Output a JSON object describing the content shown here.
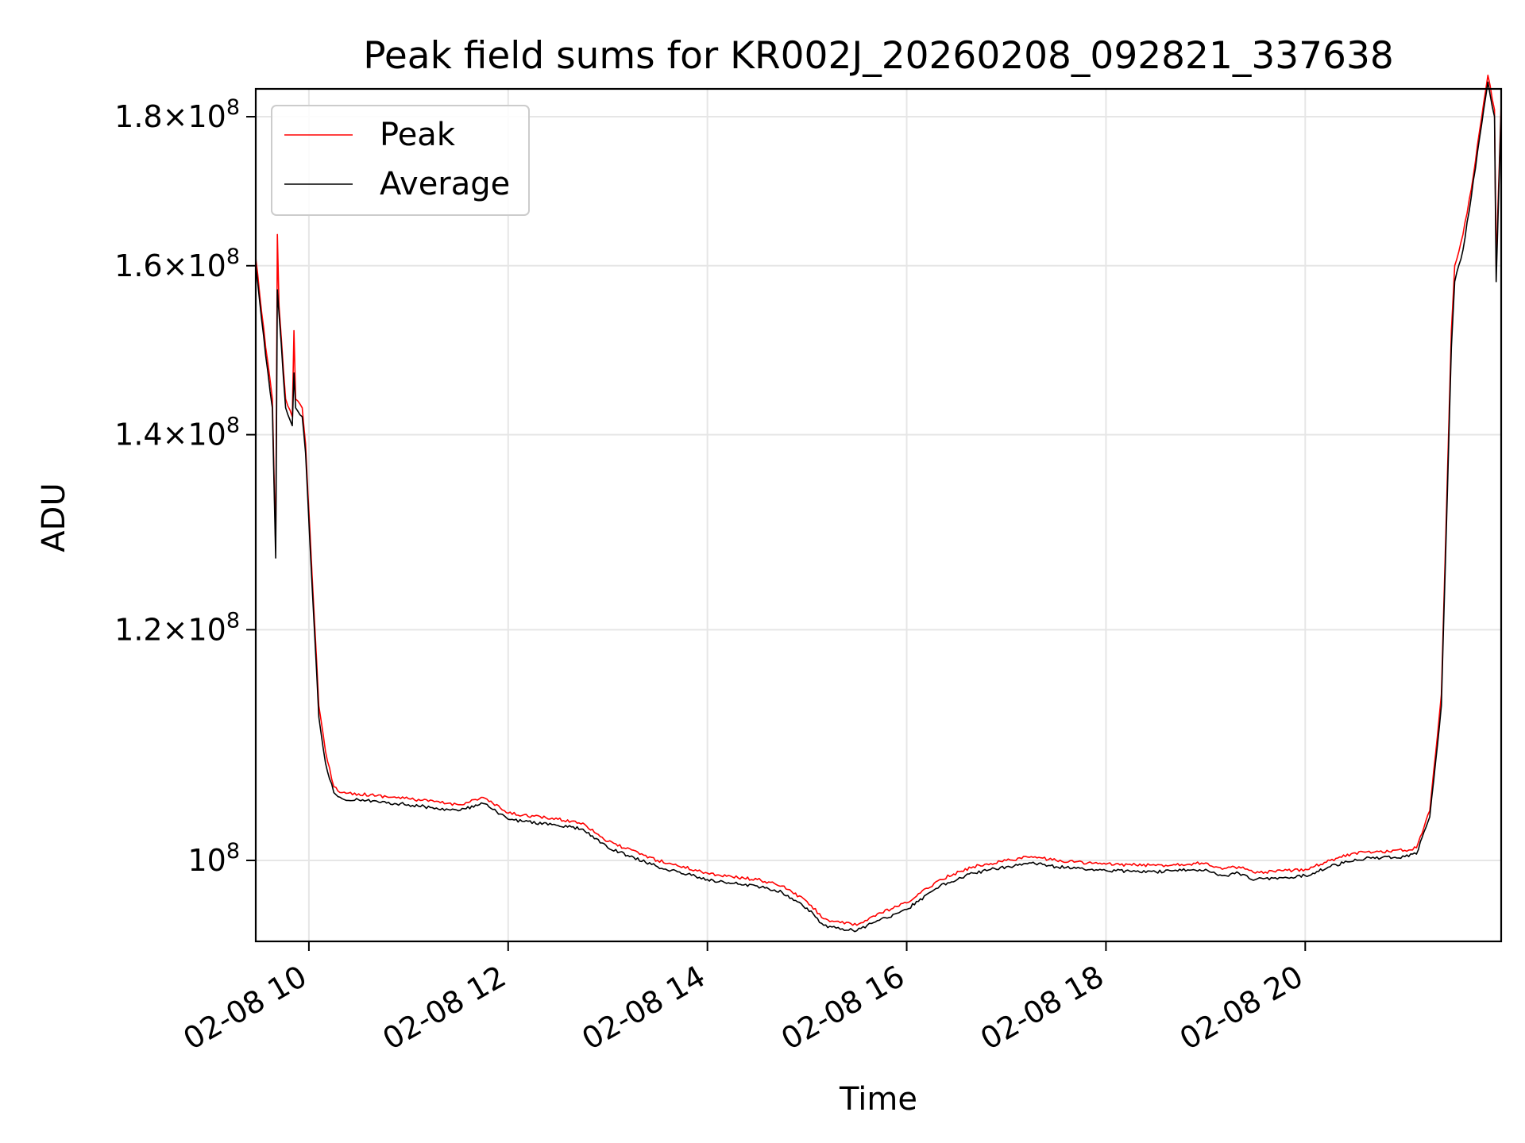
{
  "chart_data": {
    "type": "line",
    "title": "Peak field sums for KR002J_20260208_092821_337638",
    "xlabel": "Time",
    "ylabel": "ADU",
    "yscale": "log",
    "xlim": [
      "02-08 09:28",
      "02-08 21:58"
    ],
    "ylim": [
      93800000.0,
      184000000.0
    ],
    "grid": true,
    "legend_position": "top-left",
    "x_ticks": [
      "02-08 10",
      "02-08 12",
      "02-08 14",
      "02-08 16",
      "02-08 18",
      "02-08 20"
    ],
    "y_ticks": [
      {
        "value": 100000000.0,
        "mantissa": "",
        "exponent": "8",
        "label": "10"
      },
      {
        "value": 120000000.0,
        "mantissa": "1.2",
        "exponent": "8",
        "label": "10"
      },
      {
        "value": 140000000.0,
        "mantissa": "1.4",
        "exponent": "8",
        "label": "10"
      },
      {
        "value": 160000000.0,
        "mantissa": "1.6",
        "exponent": "8",
        "label": "10"
      },
      {
        "value": 180000000.0,
        "mantissa": "1.8",
        "exponent": "8",
        "label": "10"
      }
    ],
    "series": [
      {
        "name": "Peak",
        "color": "#ff0000",
        "x": [
          "02-08 09:28",
          "02-08 09:34",
          "02-08 09:38",
          "02-08 09:40",
          "02-08 09:41",
          "02-08 09:42",
          "02-08 09:46",
          "02-08 09:50",
          "02-08 09:51",
          "02-08 09:52",
          "02-08 09:56",
          "02-08 09:58",
          "02-08 10:02",
          "02-08 10:06",
          "02-08 10:10",
          "02-08 10:15",
          "02-08 10:20",
          "02-08 10:30",
          "02-08 11:00",
          "02-08 11:30",
          "02-08 11:45",
          "02-08 12:00",
          "02-08 12:30",
          "02-08 12:45",
          "02-08 13:00",
          "02-08 13:30",
          "02-08 14:00",
          "02-08 14:15",
          "02-08 14:30",
          "02-08 14:45",
          "02-08 15:00",
          "02-08 15:10",
          "02-08 15:20",
          "02-08 15:30",
          "02-08 15:40",
          "02-08 16:00",
          "02-08 16:20",
          "02-08 16:40",
          "02-08 17:00",
          "02-08 17:15",
          "02-08 17:30",
          "02-08 18:00",
          "02-08 18:30",
          "02-08 19:00",
          "02-08 19:10",
          "02-08 19:20",
          "02-08 19:30",
          "02-08 20:00",
          "02-08 20:15",
          "02-08 20:30",
          "02-08 21:00",
          "02-08 21:07",
          "02-08 21:15",
          "02-08 21:22",
          "02-08 21:28",
          "02-08 21:30",
          "02-08 21:35",
          "02-08 21:40",
          "02-08 21:45",
          "02-08 21:50",
          "02-08 21:54",
          "02-08 21:55",
          "02-08 21:58"
        ],
        "values": [
          161000000.0,
          150000000.0,
          144000000.0,
          128000000.0,
          164000000.0,
          155000000.0,
          144000000.0,
          142000000.0,
          152000000.0,
          144000000.0,
          143000000.0,
          139000000.0,
          125000000.0,
          113000000.0,
          109000000.0,
          106000000.0,
          105500000.0,
          105400000.0,
          105000000.0,
          104500000.0,
          105100000.0,
          103800000.0,
          103300000.0,
          103000000.0,
          101500000.0,
          100000000.0,
          99000000.0,
          98700000.0,
          98500000.0,
          98000000.0,
          96800000.0,
          95500000.0,
          95200000.0,
          95000000.0,
          95700000.0,
          96700000.0,
          98500000.0,
          99500000.0,
          100000000.0,
          100300000.0,
          100000000.0,
          99700000.0,
          99600000.0,
          99800000.0,
          99300000.0,
          99500000.0,
          99000000.0,
          99300000.0,
          100000000.0,
          100600000.0,
          100800000.0,
          101000000.0,
          104000000.0,
          114000000.0,
          152000000.0,
          160000000.0,
          164000000.0,
          170000000.0,
          178000000.0,
          186000000.0,
          181000000.0,
          160000000.0,
          182000000.0
        ]
      },
      {
        "name": "Average",
        "color": "#000000",
        "x": [
          "02-08 09:28",
          "02-08 09:34",
          "02-08 09:38",
          "02-08 09:40",
          "02-08 09:41",
          "02-08 09:42",
          "02-08 09:46",
          "02-08 09:50",
          "02-08 09:51",
          "02-08 09:52",
          "02-08 09:56",
          "02-08 09:58",
          "02-08 10:02",
          "02-08 10:06",
          "02-08 10:10",
          "02-08 10:15",
          "02-08 10:20",
          "02-08 10:30",
          "02-08 11:00",
          "02-08 11:30",
          "02-08 11:45",
          "02-08 12:00",
          "02-08 12:30",
          "02-08 12:45",
          "02-08 13:00",
          "02-08 13:30",
          "02-08 14:00",
          "02-08 14:15",
          "02-08 14:30",
          "02-08 14:45",
          "02-08 15:00",
          "02-08 15:10",
          "02-08 15:20",
          "02-08 15:30",
          "02-08 15:40",
          "02-08 16:00",
          "02-08 16:20",
          "02-08 16:40",
          "02-08 17:00",
          "02-08 17:15",
          "02-08 17:30",
          "02-08 18:00",
          "02-08 18:30",
          "02-08 19:00",
          "02-08 19:10",
          "02-08 19:20",
          "02-08 19:30",
          "02-08 20:00",
          "02-08 20:15",
          "02-08 20:30",
          "02-08 21:00",
          "02-08 21:07",
          "02-08 21:15",
          "02-08 21:22",
          "02-08 21:28",
          "02-08 21:30",
          "02-08 21:35",
          "02-08 21:40",
          "02-08 21:45",
          "02-08 21:50",
          "02-08 21:54",
          "02-08 21:55",
          "02-08 21:58"
        ],
        "values": [
          160000000.0,
          149000000.0,
          143000000.0,
          127000000.0,
          157000000.0,
          154000000.0,
          143000000.0,
          141000000.0,
          147000000.0,
          143000000.0,
          142000000.0,
          138000000.0,
          124000000.0,
          112000000.0,
          108000000.0,
          105500000.0,
          105000000.0,
          104900000.0,
          104500000.0,
          104000000.0,
          104600000.0,
          103300000.0,
          102800000.0,
          102500000.0,
          101000000.0,
          99500000.0,
          98500000.0,
          98200000.0,
          98000000.0,
          97500000.0,
          96300000.0,
          95000000.0,
          94700000.0,
          94600000.0,
          95200000.0,
          96200000.0,
          98000000.0,
          99000000.0,
          99500000.0,
          99800000.0,
          99500000.0,
          99200000.0,
          99100000.0,
          99300000.0,
          98800000.0,
          99000000.0,
          98500000.0,
          98800000.0,
          99500000.0,
          100100000.0,
          100300000.0,
          100500000.0,
          103500000.0,
          113000000.0,
          150000000.0,
          158000000.0,
          162000000.0,
          169000000.0,
          177000000.0,
          185000000.0,
          180000000.0,
          158000000.0,
          181000000.0
        ]
      }
    ]
  }
}
